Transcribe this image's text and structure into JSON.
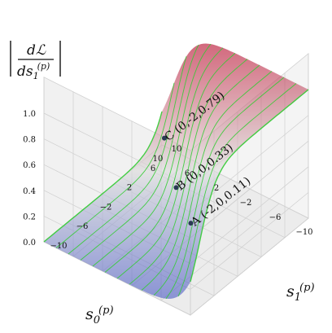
{
  "chart_data": {
    "type": "surface3d",
    "axes": {
      "x": {
        "label": "s_0^(p)",
        "range": [
          -10,
          10
        ],
        "ticks": [
          10,
          6,
          2,
          -2,
          -6,
          -10
        ],
        "tick_labels": [
          "10",
          "6",
          "2",
          "−2",
          "−6",
          "−10"
        ]
      },
      "y": {
        "label": "s_1^(p)",
        "range": [
          -10,
          10
        ],
        "ticks": [
          -10,
          -6,
          -2,
          2,
          6,
          10
        ],
        "tick_labels": [
          "−10",
          "−6",
          "−2",
          "2",
          "6",
          "10"
        ]
      },
      "z": {
        "label": "|dL/ds_1^(p)|",
        "range": [
          0,
          1
        ],
        "ticks": [
          0,
          0.2,
          0.4,
          0.6,
          0.8,
          1.0
        ],
        "tick_labels": [
          "0.0",
          "0.2",
          "0.4",
          "0.6",
          "0.8",
          "1.0"
        ]
      }
    },
    "surface": {
      "colormap": [
        "#3b4cc0",
        "#dddddd",
        "#b40426"
      ],
      "contour_color": "#33cc33",
      "grid": true
    },
    "points": [
      {
        "label": "A (-2,0,0.11)",
        "x": -2,
        "y": 0,
        "z": 0.11
      },
      {
        "label": "B (0,0,0.33)",
        "x": 0,
        "y": 0,
        "z": 0.33
      },
      {
        "label": "C (0,-2,0.79)",
        "x": 0,
        "y": -2,
        "z": 0.79
      }
    ]
  }
}
